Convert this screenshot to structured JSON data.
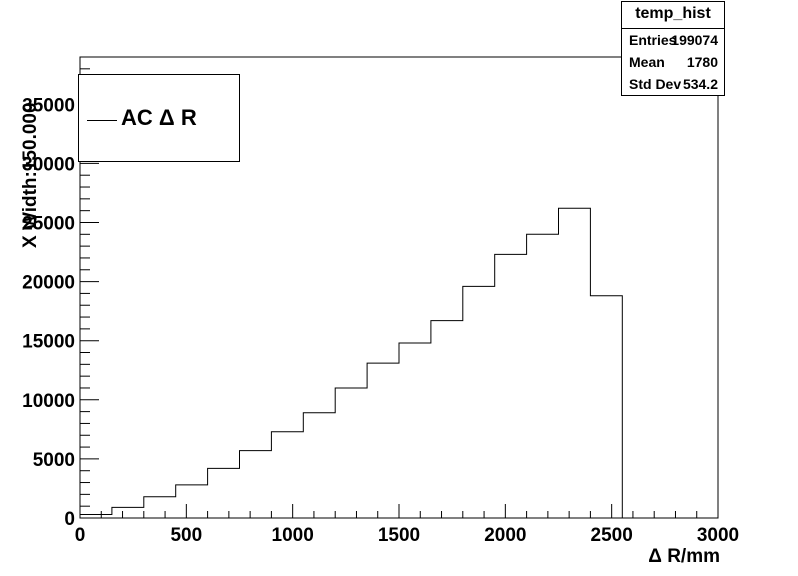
{
  "stats_box": {
    "title": "temp_hist",
    "rows": [
      {
        "key": "Entries",
        "value": "199074"
      },
      {
        "key": "Mean",
        "value": "1780"
      },
      {
        "key": "Std Dev",
        "value": "534.2"
      }
    ]
  },
  "chart_data": {
    "type": "bar",
    "style": "step-histogram",
    "xlabel": "Δ R/mm",
    "ylabel": "X Width:150.000",
    "legend": {
      "entries": [
        "AC Δ R"
      ],
      "placement": "top-left"
    },
    "xlim": [
      0,
      3000
    ],
    "ylim": [
      0,
      39000
    ],
    "x_ticks": [
      0,
      500,
      1000,
      1500,
      2000,
      2500,
      3000
    ],
    "x_tick_labels": [
      "0",
      "500",
      "1000",
      "1500",
      "2000",
      "2500",
      "3000"
    ],
    "y_ticks": [
      0,
      5000,
      10000,
      15000,
      20000,
      25000,
      30000,
      35000
    ],
    "y_tick_labels": [
      "0",
      "5000",
      "10000",
      "15000",
      "20000",
      "25000",
      "30000",
      "35000"
    ],
    "bin_width": 150,
    "bin_edges": [
      0,
      150,
      300,
      450,
      600,
      750,
      900,
      1050,
      1200,
      1350,
      1500,
      1650,
      1800,
      1950,
      2100,
      2250,
      2400,
      2550,
      2700,
      2850,
      3000
    ],
    "values": [
      300,
      900,
      1800,
      2800,
      4200,
      5700,
      7300,
      8900,
      11000,
      13100,
      14800,
      16700,
      19600,
      22300,
      24000,
      26200,
      18800,
      0,
      0,
      0
    ],
    "grid": false
  }
}
